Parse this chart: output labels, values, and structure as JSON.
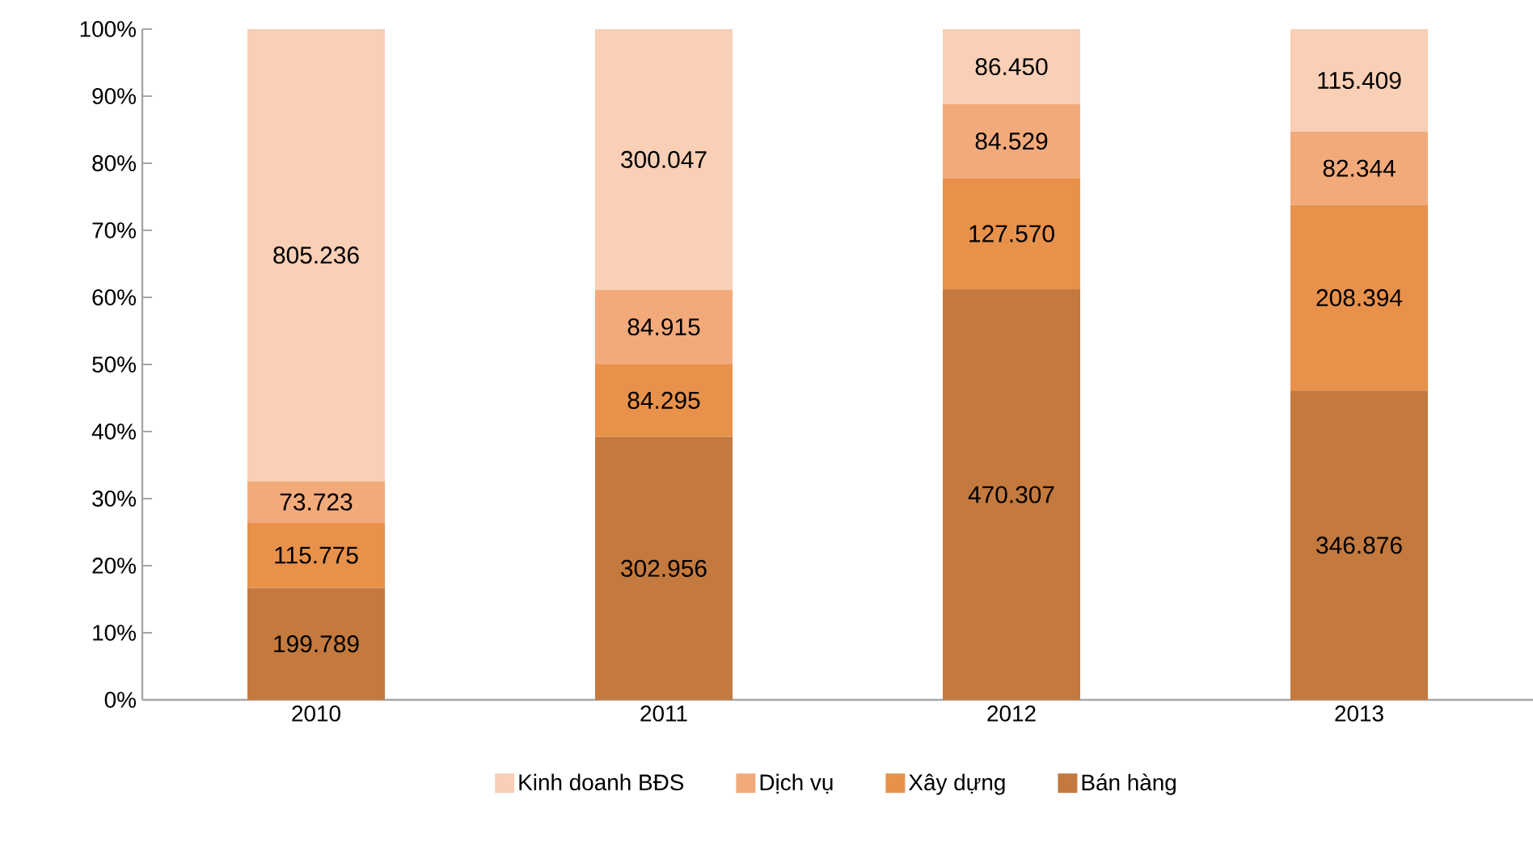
{
  "chart_data": {
    "type": "bar",
    "stacked": true,
    "categories": [
      "2010",
      "2011",
      "2012",
      "2013"
    ],
    "series": [
      {
        "name": "Bán hàng",
        "color": "#c47a3e",
        "values": [
          16.7,
          39.2,
          61.2,
          46.1
        ]
      },
      {
        "name": "Xây dựng",
        "color": "#e8914b",
        "values": [
          9.7,
          10.9,
          16.6,
          27.7
        ]
      },
      {
        "name": "Dịch vụ",
        "color": "#f3aa7a",
        "values": [
          6.2,
          11.0,
          11.0,
          10.9
        ]
      },
      {
        "name": "Kinh doanh BĐS",
        "color": "#f9cfb6",
        "values": [
          67.4,
          38.9,
          11.2,
          15.3
        ]
      }
    ],
    "annotations": [
      "199.789",
      "115.775",
      "73.723",
      "805.236",
      "302.956",
      "84.295",
      "84.915",
      "300.047",
      "470.307",
      "127.570",
      "84.529",
      "86.450",
      "346.876",
      "208.394",
      "82.344",
      "115.409"
    ],
    "ylim": [
      0,
      100
    ],
    "yticks": [
      {
        "value": 0,
        "label": "0%"
      },
      {
        "value": 10,
        "label": "10%"
      },
      {
        "value": 20,
        "label": "20%"
      },
      {
        "value": 30,
        "label": "30%"
      },
      {
        "value": 40,
        "label": "40%"
      },
      {
        "value": 50,
        "label": "50%"
      },
      {
        "value": 60,
        "label": "60%"
      },
      {
        "value": 70,
        "label": "70%"
      },
      {
        "value": 80,
        "label": "80%"
      },
      {
        "value": 90,
        "label": "90%"
      },
      {
        "value": 100,
        "label": "100%"
      }
    ],
    "legend": "bottom"
  }
}
